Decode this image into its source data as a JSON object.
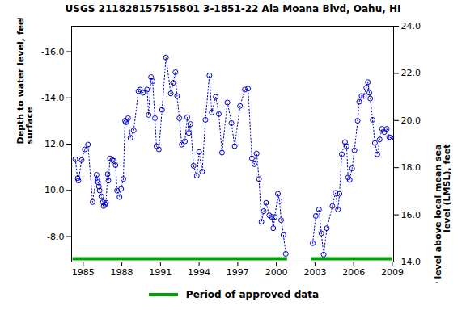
{
  "chart_data": {
    "type": "line",
    "title": "USGS 211828157515801 3-1851-22 Ala Moana Blvd, Oahu, HI",
    "ylabel": "Depth to water level, feet below land surface",
    "y2label": "Groundwater level above local mean sea level (LMSL), feet",
    "color": "#0000cc",
    "marker": "circle",
    "line_style": "dotted",
    "x": [
      1984.39,
      1984.57,
      1984.63,
      1984.88,
      1985.12,
      1985.37,
      1985.73,
      1986.04,
      1986.1,
      1986.16,
      1986.22,
      1986.28,
      1986.41,
      1986.53,
      1986.59,
      1986.71,
      1986.77,
      1986.9,
      1986.96,
      1987.08,
      1987.27,
      1987.39,
      1987.51,
      1987.63,
      1987.82,
      1987.94,
      1988.12,
      1988.25,
      1988.31,
      1988.49,
      1988.67,
      1988.92,
      1989.29,
      1989.41,
      1989.65,
      1989.96,
      1990.08,
      1990.27,
      1990.39,
      1990.57,
      1990.69,
      1990.88,
      1991.12,
      1991.43,
      1991.8,
      1991.98,
      1992.16,
      1992.29,
      1992.47,
      1992.65,
      1992.9,
      1993.08,
      1993.2,
      1993.33,
      1993.57,
      1993.82,
      1994.0,
      1994.24,
      1994.49,
      1994.8,
      1994.98,
      1995.29,
      1995.53,
      1995.78,
      1996.2,
      1996.51,
      1996.76,
      1997.18,
      1997.55,
      1997.8,
      1998.1,
      1998.29,
      1998.47,
      1998.65,
      1998.84,
      1999.02,
      1999.2,
      1999.45,
      1999.63,
      1999.76,
      1999.88,
      2000.12,
      2000.25,
      2000.37,
      2000.55,
      2000.73,
      2001.8,
      2002.82,
      2003.06,
      2003.31,
      2003.49,
      2003.67,
      2003.92,
      2004.35,
      2004.59,
      2004.78,
      2004.9,
      2005.08,
      2005.33,
      2005.45,
      2005.57,
      2005.69,
      2005.88,
      2006.06,
      2006.31,
      2006.43,
      2006.61,
      2006.8,
      2006.98,
      2007.1,
      2007.22,
      2007.29,
      2007.47,
      2007.65,
      2007.84,
      2008.02,
      2008.2,
      2008.39,
      2008.57,
      2008.76,
      2008.88
    ],
    "values": [
      -11.34,
      -10.52,
      -10.42,
      -11.31,
      -11.77,
      -11.98,
      -9.49,
      -10.67,
      -10.45,
      -10.35,
      -10.17,
      -9.99,
      -9.74,
      -9.49,
      -9.32,
      -9.39,
      -9.46,
      -10.7,
      -10.42,
      -11.38,
      -11.31,
      -11.27,
      -11.09,
      -9.99,
      -9.71,
      -10.06,
      -10.49,
      -13.01,
      -12.94,
      -13.12,
      -12.27,
      -12.59,
      -14.29,
      -14.36,
      -14.22,
      -14.36,
      -13.26,
      -14.9,
      -14.72,
      -13.12,
      -11.91,
      -11.77,
      -13.48,
      -15.75,
      -14.19,
      -14.65,
      -15.11,
      -14.08,
      -13.12,
      -11.98,
      -12.12,
      -13.16,
      -12.48,
      -12.87,
      -11.06,
      -10.63,
      -11.66,
      -10.81,
      -13.05,
      -14.97,
      -13.37,
      -14.04,
      -13.3,
      -11.63,
      -13.8,
      -12.91,
      -11.91,
      -13.65,
      -14.36,
      -14.4,
      -11.38,
      -11.13,
      -11.59,
      -10.49,
      -8.64,
      -9.1,
      -9.46,
      -8.92,
      -8.85,
      -8.36,
      -8.85,
      -9.85,
      -9.53,
      -8.71,
      -8.07,
      -7.25,
      null,
      -7.71,
      -8.89,
      -9.17,
      -8.14,
      -7.22,
      -8.36,
      -9.32,
      -9.89,
      -9.17,
      -9.85,
      -11.56,
      -12.09,
      -11.91,
      -10.56,
      -10.45,
      -10.95,
      -11.73,
      -13.01,
      -13.83,
      -14.08,
      -14.08,
      -14.44,
      -14.68,
      -14.22,
      -13.97,
      -13.05,
      -12.05,
      -11.56,
      -12.2,
      -12.66,
      -12.52,
      -12.66,
      -12.3,
      -12.27
    ],
    "xlim": [
      1984.1,
      2009.1
    ],
    "xticks": [
      1985,
      1988,
      1991,
      1994,
      1997,
      2000,
      2003,
      2006,
      2009
    ],
    "ylim": [
      -6.9,
      -17.1
    ],
    "yticks": [
      {
        "value": -16,
        "label": "-16.0"
      },
      {
        "value": -14,
        "label": "-14.0"
      },
      {
        "value": -12,
        "label": "-12.0"
      },
      {
        "value": -10,
        "label": "-10.0"
      },
      {
        "value": -8,
        "label": "-8.0"
      }
    ],
    "y2lim": [
      14,
      24
    ],
    "y2ticks": [
      {
        "value": 14,
        "label": "14.0"
      },
      {
        "value": 16,
        "label": "16.0"
      },
      {
        "value": 18,
        "label": "18.0"
      },
      {
        "value": 20,
        "label": "20.0"
      },
      {
        "value": 22,
        "label": "22.0"
      },
      {
        "value": 24,
        "label": "24.0"
      }
    ],
    "grid": false,
    "legend": "bottom",
    "approved_periods": {
      "name": "Period of approved data",
      "color": "#00a000",
      "ranges": [
        [
          1984.2,
          2000.86
        ],
        [
          2002.7,
          2009.0
        ]
      ]
    }
  }
}
